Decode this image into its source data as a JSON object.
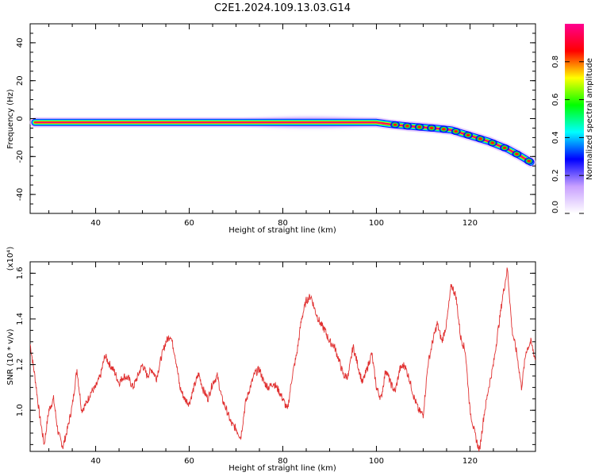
{
  "title": "C2E1.2024.109.13.03.G14",
  "chart_data": [
    {
      "type": "heatmap",
      "xlabel": "Height of straight line (km)",
      "ylabel": "Frequency (Hz)",
      "xlim": [
        26,
        134
      ],
      "ylim": [
        -50,
        50
      ],
      "xticks": [
        40,
        60,
        80,
        100,
        120
      ],
      "yticks": [
        -40,
        -20,
        0,
        20,
        40
      ],
      "grid": false,
      "colorbar": {
        "label": "Normalized spectral amplitude",
        "range": [
          0.0,
          1.0
        ],
        "ticks": [
          "0.0",
          "0.2",
          "0.4",
          "0.6",
          "0.8"
        ],
        "colors": [
          "#ffffff",
          "#c8a0ff",
          "#0000ff",
          "#00ffff",
          "#00ff00",
          "#ffff00",
          "#ff0000",
          "#ff0090"
        ]
      },
      "ridge": {
        "x": [
          27,
          60,
          80,
          100,
          103,
          107,
          112,
          116,
          120,
          124,
          128,
          131,
          133
        ],
        "y": [
          -2,
          -2,
          -2,
          -2,
          -3,
          -4,
          -5,
          -6,
          -9,
          -12,
          -16,
          -20,
          -23
        ]
      }
    },
    {
      "type": "line",
      "xlabel": "Height of straight line (km)",
      "ylabel": "SNR (10 * v/v)",
      "ylabel_multiplier": "(x10⁴)",
      "xlim": [
        26,
        134
      ],
      "ylim": [
        0.82,
        1.65
      ],
      "xticks": [
        40,
        60,
        80,
        100,
        120
      ],
      "yticks": [
        "1.0",
        "1.2",
        "1.4",
        "1.6"
      ],
      "line_color": "#e03030",
      "series": [
        {
          "x": [
            26,
            27,
            28,
            29,
            30,
            31,
            32,
            33,
            34,
            35,
            36,
            37,
            38,
            39,
            40,
            41,
            42,
            43,
            44,
            45,
            46,
            47,
            48,
            49,
            50,
            51,
            52,
            53,
            54,
            55,
            56,
            57,
            58,
            59,
            60,
            61,
            62,
            63,
            64,
            65,
            66,
            67,
            68,
            69,
            70,
            71,
            72,
            73,
            74,
            75,
            76,
            77,
            78,
            79,
            80,
            81,
            82,
            83,
            84,
            85,
            86,
            87,
            88,
            89,
            90,
            91,
            92,
            93,
            94,
            95,
            96,
            97,
            98,
            99,
            100,
            101,
            102,
            103,
            104,
            105,
            106,
            107,
            108,
            109,
            110,
            111,
            112,
            113,
            114,
            115,
            116,
            117,
            118,
            119,
            120,
            121,
            122,
            123,
            124,
            125,
            126,
            127,
            128,
            129,
            130,
            131,
            132,
            133,
            134
          ],
          "y": [
            1.29,
            1.15,
            0.98,
            0.85,
            1.0,
            1.05,
            0.9,
            0.84,
            0.92,
            1.02,
            1.18,
            1.0,
            1.03,
            1.08,
            1.1,
            1.15,
            1.24,
            1.2,
            1.17,
            1.12,
            1.15,
            1.14,
            1.1,
            1.15,
            1.2,
            1.15,
            1.18,
            1.14,
            1.23,
            1.3,
            1.33,
            1.24,
            1.1,
            1.05,
            1.03,
            1.1,
            1.16,
            1.09,
            1.05,
            1.12,
            1.15,
            1.05,
            1.0,
            0.94,
            0.92,
            0.88,
            1.03,
            1.1,
            1.16,
            1.18,
            1.12,
            1.1,
            1.12,
            1.09,
            1.05,
            1.0,
            1.15,
            1.25,
            1.4,
            1.48,
            1.5,
            1.43,
            1.38,
            1.35,
            1.3,
            1.28,
            1.22,
            1.15,
            1.15,
            1.28,
            1.2,
            1.12,
            1.18,
            1.25,
            1.1,
            1.05,
            1.18,
            1.12,
            1.08,
            1.18,
            1.2,
            1.14,
            1.06,
            1.0,
            0.98,
            1.2,
            1.3,
            1.38,
            1.3,
            1.38,
            1.55,
            1.5,
            1.32,
            1.26,
            1.0,
            0.9,
            0.82,
            0.98,
            1.1,
            1.2,
            1.35,
            1.5,
            1.62,
            1.35,
            1.25,
            1.1,
            1.26,
            1.3,
            1.22
          ]
        }
      ]
    }
  ]
}
